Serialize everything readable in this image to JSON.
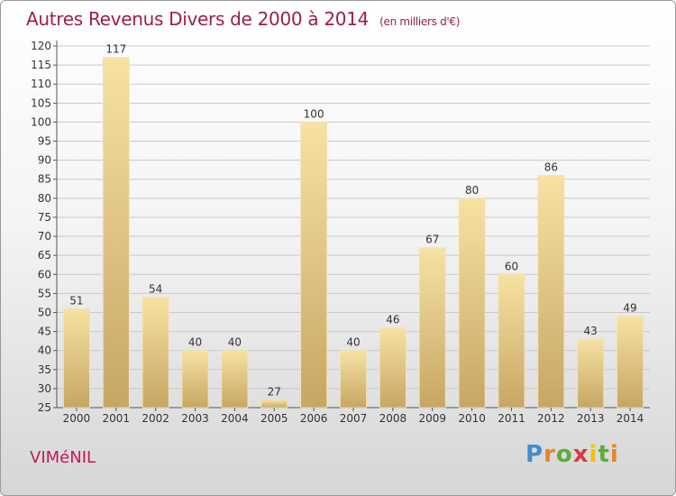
{
  "header": {
    "title": "Autres Revenus Divers de 2000 à 2014",
    "subtitle": "(en milliers d'€)"
  },
  "footer": {
    "commune": "VIMéNIL",
    "logo": "Proxiti"
  },
  "colors": {
    "title": "#9c1f4a",
    "bar_light": "#f5dd9a",
    "bar_dark": "#c8a765",
    "grid": "#c8c8c8",
    "commune": "#c2185b"
  },
  "chart_data": {
    "type": "bar",
    "categories": [
      "2000",
      "2001",
      "2002",
      "2003",
      "2004",
      "2005",
      "2006",
      "2007",
      "2008",
      "2009",
      "2010",
      "2011",
      "2012",
      "2013",
      "2014"
    ],
    "values": [
      51,
      117,
      54,
      40,
      40,
      27,
      100,
      40,
      46,
      67,
      80,
      60,
      86,
      43,
      49
    ],
    "ylim": [
      25,
      120
    ],
    "yticks": [
      25,
      30,
      35,
      40,
      45,
      50,
      55,
      60,
      65,
      70,
      75,
      80,
      85,
      90,
      95,
      100,
      105,
      110,
      115,
      120
    ],
    "grid": true,
    "data_labels": true
  }
}
